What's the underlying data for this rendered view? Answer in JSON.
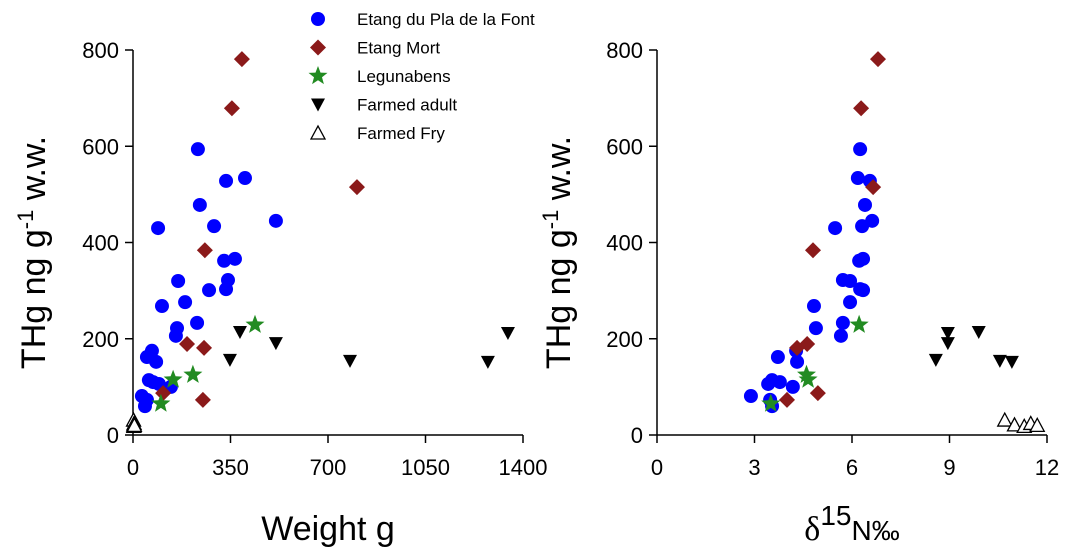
{
  "chart_data": [
    {
      "type": "scatter",
      "xlabel": "Weight g",
      "ylabel": [
        "THg ng g",
        "-1",
        " w.w."
      ],
      "xlim": [
        0,
        1400
      ],
      "ylim": [
        0,
        800
      ],
      "xticks": [
        0,
        350,
        700,
        1050,
        1400
      ],
      "yticks": [
        0,
        200,
        400,
        600,
        800
      ],
      "legend": "top",
      "series": [
        {
          "name": "Etang du Pla de la Font",
          "color": "#0000ff",
          "marker": "circle",
          "x": [
            233,
            402,
            334,
            240,
            513,
            90,
            291,
            327,
            366,
            341,
            162,
            334,
            273,
            187,
            104,
            230,
            158,
            154,
            68,
            50,
            83,
            57,
            72,
            93,
            136,
            32,
            50,
            43
          ],
          "values": [
            594,
            534,
            528,
            478,
            445,
            430,
            434,
            362,
            366,
            322,
            320,
            303,
            301,
            276,
            268,
            233,
            222,
            206,
            175,
            162,
            152,
            114,
            110,
            106,
            100,
            81,
            73,
            60
          ]
        },
        {
          "name": "Etang Mort",
          "color": "#8b1a1a",
          "marker": "diamond",
          "x": [
            391,
            355,
            804,
            258,
            194,
            255,
            108,
            251
          ],
          "values": [
            781,
            679,
            515,
            384,
            189,
            181,
            87,
            73
          ]
        },
        {
          "name": "Legunabens",
          "color": "#228b22",
          "marker": "star",
          "x": [
            438,
            215,
            144,
            100
          ],
          "values": [
            229,
            125,
            115,
            65
          ]
        },
        {
          "name": "Farmed adult",
          "color": "#000000",
          "marker": "triangle-down",
          "x": [
            1346,
            384,
            348,
            513,
            779,
            1274
          ],
          "values": [
            212,
            214,
            156,
            191,
            154,
            152
          ]
        },
        {
          "name": "Farmed Fry",
          "color": "#000000",
          "marker": "triangle-up-open",
          "x": [
            2,
            3,
            3,
            4,
            5
          ],
          "values": [
            31,
            21,
            18,
            24,
            20
          ]
        }
      ]
    },
    {
      "type": "scatter",
      "xlabel": [
        "δ",
        "15",
        "N‰"
      ],
      "ylabel": [
        "THg ng g",
        "-1",
        " w.w."
      ],
      "xlim": [
        0,
        12
      ],
      "ylim": [
        0,
        800
      ],
      "xticks": [
        0,
        3,
        6,
        9,
        12
      ],
      "yticks": [
        0,
        200,
        400,
        600,
        800
      ],
      "series": [
        {
          "color": "#0000ff",
          "marker": "circle",
          "x": [
            6.25,
            6.18,
            6.55,
            6.4,
            6.62,
            5.48,
            6.31,
            6.22,
            6.34,
            5.72,
            5.94,
            6.25,
            6.34,
            5.94,
            4.83,
            5.72,
            4.89,
            5.66,
            4.28,
            3.72,
            4.31,
            3.54,
            3.78,
            3.42,
            4.18,
            2.89,
            3.48,
            3.54
          ],
          "values": [
            594,
            534,
            528,
            478,
            445,
            430,
            434,
            362,
            366,
            322,
            320,
            303,
            301,
            276,
            268,
            233,
            222,
            206,
            175,
            162,
            152,
            114,
            110,
            106,
            100,
            81,
            73,
            60
          ]
        },
        {
          "color": "#8b1a1a",
          "marker": "diamond",
          "x": [
            6.8,
            6.28,
            6.65,
            4.8,
            4.62,
            4.31,
            4.95,
            4.0
          ],
          "values": [
            781,
            679,
            515,
            384,
            189,
            181,
            87,
            73
          ]
        },
        {
          "color": "#228b22",
          "marker": "star",
          "x": [
            6.22,
            4.6,
            4.65,
            3.5
          ],
          "values": [
            229,
            125,
            115,
            65
          ]
        },
        {
          "color": "#000000",
          "marker": "triangle-down",
          "x": [
            8.95,
            9.9,
            8.95,
            8.58,
            10.55,
            10.92
          ],
          "values": [
            212,
            214,
            191,
            156,
            154,
            152
          ]
        },
        {
          "color": "#000000",
          "marker": "triangle-up-open",
          "x": [
            10.7,
            11.0,
            11.3,
            11.5,
            11.7
          ],
          "values": [
            31,
            21,
            18,
            24,
            20
          ]
        }
      ]
    }
  ]
}
